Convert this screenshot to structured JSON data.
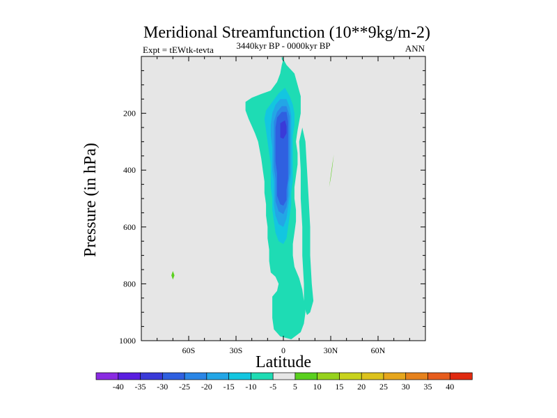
{
  "chart_data": {
    "type": "contour",
    "title": "Meridional Streamfunction (10**9kg/m-2)",
    "subtitle_left": "Expt = tEWtk-tevta",
    "subtitle_center": "3440kyr BP - 0000kyr BP",
    "subtitle_right": "ANN",
    "xlabel": "Latitude",
    "ylabel": "Pressure (in hPa)",
    "xlim": [
      -90,
      90
    ],
    "ylim": [
      1000,
      0
    ],
    "x_ticks": [
      -60,
      -30,
      0,
      30,
      60
    ],
    "x_tick_labels": [
      "60S",
      "30S",
      "0",
      "30N",
      "60N"
    ],
    "y_ticks": [
      200,
      400,
      600,
      800,
      1000
    ],
    "y_tick_labels": [
      "200",
      "400",
      "600",
      "800",
      "1000"
    ],
    "colorbar": {
      "labels": [
        "-40",
        "-35",
        "-30",
        "-25",
        "-20",
        "-15",
        "-10",
        "-5",
        "5",
        "10",
        "15",
        "20",
        "25",
        "30",
        "35",
        "40"
      ],
      "colors": [
        "#8a2be2",
        "#5a1ee0",
        "#3a3ad8",
        "#2f60e0",
        "#2a86e6",
        "#23a6e6",
        "#13c6e0",
        "#1edcb4",
        "#e6e6e6",
        "#5ad01e",
        "#96d21c",
        "#c8d21c",
        "#dcc21c",
        "#e6a61c",
        "#e6821c",
        "#e65c1c",
        "#e02a10"
      ]
    },
    "contours": [
      {
        "level": -5,
        "color": "#1edcb4",
        "points": [
          [
            0,
            10
          ],
          [
            2,
            30
          ],
          [
            7,
            60
          ],
          [
            9,
            100
          ],
          [
            11,
            140
          ],
          [
            11,
            200
          ],
          [
            9,
            260
          ],
          [
            8,
            300
          ],
          [
            9,
            340
          ],
          [
            9,
            380
          ],
          [
            8,
            420
          ],
          [
            7,
            460
          ],
          [
            7,
            500
          ],
          [
            8,
            540
          ],
          [
            8,
            580
          ],
          [
            7,
            620
          ],
          [
            6,
            660
          ],
          [
            6,
            700
          ],
          [
            7,
            740
          ],
          [
            10,
            780
          ],
          [
            12,
            820
          ],
          [
            13,
            860
          ],
          [
            14,
            900
          ],
          [
            13,
            940
          ],
          [
            11,
            970
          ],
          [
            5,
            995
          ],
          [
            -2,
            985
          ],
          [
            -6,
            960
          ],
          [
            -7,
            920
          ],
          [
            -7,
            880
          ],
          [
            -7,
            845
          ],
          [
            -4,
            825
          ],
          [
            -3,
            800
          ],
          [
            -5,
            775
          ],
          [
            -8,
            760
          ],
          [
            -9,
            720
          ],
          [
            -9,
            680
          ],
          [
            -10,
            640
          ],
          [
            -10,
            600
          ],
          [
            -11,
            560
          ],
          [
            -11,
            520
          ],
          [
            -12,
            480
          ],
          [
            -12,
            440
          ],
          [
            -13,
            400
          ],
          [
            -14,
            360
          ],
          [
            -15,
            330
          ],
          [
            -16,
            300
          ],
          [
            -18,
            270
          ],
          [
            -20,
            245
          ],
          [
            -22,
            220
          ],
          [
            -24,
            190
          ],
          [
            -24,
            160
          ],
          [
            -20,
            145
          ],
          [
            -14,
            132
          ],
          [
            -8,
            120
          ],
          [
            -4,
            90
          ],
          [
            -2,
            60
          ],
          [
            -1,
            30
          ]
        ]
      },
      {
        "level": -10,
        "color": "#13c6e0",
        "points": [
          [
            1,
            110
          ],
          [
            4,
            140
          ],
          [
            6,
            170
          ],
          [
            7,
            200
          ],
          [
            7,
            240
          ],
          [
            6,
            280
          ],
          [
            6,
            320
          ],
          [
            6,
            360
          ],
          [
            6,
            400
          ],
          [
            6,
            440
          ],
          [
            5,
            480
          ],
          [
            5,
            520
          ],
          [
            4,
            560
          ],
          [
            3,
            600
          ],
          [
            2,
            640
          ],
          [
            0,
            660
          ],
          [
            -3,
            650
          ],
          [
            -5,
            620
          ],
          [
            -6,
            580
          ],
          [
            -7,
            540
          ],
          [
            -7,
            500
          ],
          [
            -8,
            460
          ],
          [
            -8,
            420
          ],
          [
            -8,
            380
          ],
          [
            -9,
            340
          ],
          [
            -10,
            300
          ],
          [
            -11,
            260
          ],
          [
            -12,
            220
          ],
          [
            -11,
            190
          ],
          [
            -7,
            160
          ],
          [
            -3,
            130
          ]
        ]
      },
      {
        "level": -15,
        "color": "#23a6e6",
        "points": [
          [
            2,
            150
          ],
          [
            4,
            180
          ],
          [
            5,
            210
          ],
          [
            5,
            250
          ],
          [
            5,
            290
          ],
          [
            5,
            330
          ],
          [
            5,
            370
          ],
          [
            5,
            410
          ],
          [
            4,
            450
          ],
          [
            4,
            490
          ],
          [
            3,
            530
          ],
          [
            2,
            570
          ],
          [
            0,
            600
          ],
          [
            -3,
            590
          ],
          [
            -5,
            560
          ],
          [
            -6,
            520
          ],
          [
            -6,
            480
          ],
          [
            -6,
            440
          ],
          [
            -7,
            400
          ],
          [
            -7,
            360
          ],
          [
            -7,
            320
          ],
          [
            -8,
            280
          ],
          [
            -8,
            240
          ],
          [
            -7,
            200
          ],
          [
            -5,
            170
          ],
          [
            -2,
            150
          ]
        ]
      },
      {
        "level": -20,
        "color": "#2a86e6",
        "points": [
          [
            2,
            175
          ],
          [
            4,
            210
          ],
          [
            4,
            250
          ],
          [
            4,
            290
          ],
          [
            4,
            330
          ],
          [
            4,
            370
          ],
          [
            4,
            410
          ],
          [
            3,
            450
          ],
          [
            3,
            490
          ],
          [
            2,
            530
          ],
          [
            0,
            555
          ],
          [
            -3,
            545
          ],
          [
            -5,
            510
          ],
          [
            -5,
            470
          ],
          [
            -5,
            430
          ],
          [
            -6,
            390
          ],
          [
            -6,
            350
          ],
          [
            -6,
            310
          ],
          [
            -6,
            270
          ],
          [
            -6,
            230
          ],
          [
            -4,
            195
          ],
          [
            -1,
            175
          ]
        ]
      },
      {
        "level": -25,
        "color": "#2f60e0",
        "points": [
          [
            2,
            195
          ],
          [
            3,
            230
          ],
          [
            3,
            270
          ],
          [
            3,
            310
          ],
          [
            3,
            350
          ],
          [
            3,
            390
          ],
          [
            3,
            430
          ],
          [
            2,
            470
          ],
          [
            2,
            505
          ],
          [
            0,
            525
          ],
          [
            -2,
            520
          ],
          [
            -4,
            490
          ],
          [
            -4,
            450
          ],
          [
            -4,
            410
          ],
          [
            -5,
            370
          ],
          [
            -5,
            330
          ],
          [
            -5,
            290
          ],
          [
            -5,
            250
          ],
          [
            -4,
            215
          ],
          [
            -1,
            195
          ]
        ]
      },
      {
        "level": -30,
        "color": "#3a3ad8",
        "points": [
          [
            1,
            225
          ],
          [
            2,
            245
          ],
          [
            2,
            270
          ],
          [
            0,
            290
          ],
          [
            -2,
            285
          ],
          [
            -2,
            260
          ],
          [
            -2,
            235
          ]
        ]
      },
      {
        "level": 5,
        "color": "#5ad01e",
        "points": [
          [
            32,
            345
          ],
          [
            31,
            380
          ],
          [
            30,
            420
          ],
          [
            29,
            460
          ],
          [
            30,
            430
          ],
          [
            31,
            390
          ]
        ]
      },
      {
        "level": 5,
        "color": "#5ad01e",
        "points": [
          [
            -70,
            755
          ],
          [
            -69,
            770
          ],
          [
            -70,
            785
          ],
          [
            -71,
            770
          ]
        ]
      },
      {
        "level": -5,
        "color": "#1edcb4",
        "points": [
          [
            12,
            250
          ],
          [
            14,
            300
          ],
          [
            15,
            400
          ],
          [
            16,
            500
          ],
          [
            17,
            600
          ],
          [
            17,
            700
          ],
          [
            18,
            800
          ],
          [
            19,
            860
          ],
          [
            17,
            900
          ],
          [
            15,
            910
          ],
          [
            13,
            880
          ],
          [
            13,
            800
          ],
          [
            12,
            700
          ],
          [
            12,
            600
          ],
          [
            11,
            500
          ],
          [
            11,
            400
          ],
          [
            10,
            300
          ]
        ]
      },
      {
        "level": -5,
        "color": "#1edcb4",
        "points": [
          [
            -1,
            0
          ],
          [
            0,
            8
          ],
          [
            0,
            18
          ],
          [
            -1,
            10
          ]
        ]
      }
    ]
  }
}
